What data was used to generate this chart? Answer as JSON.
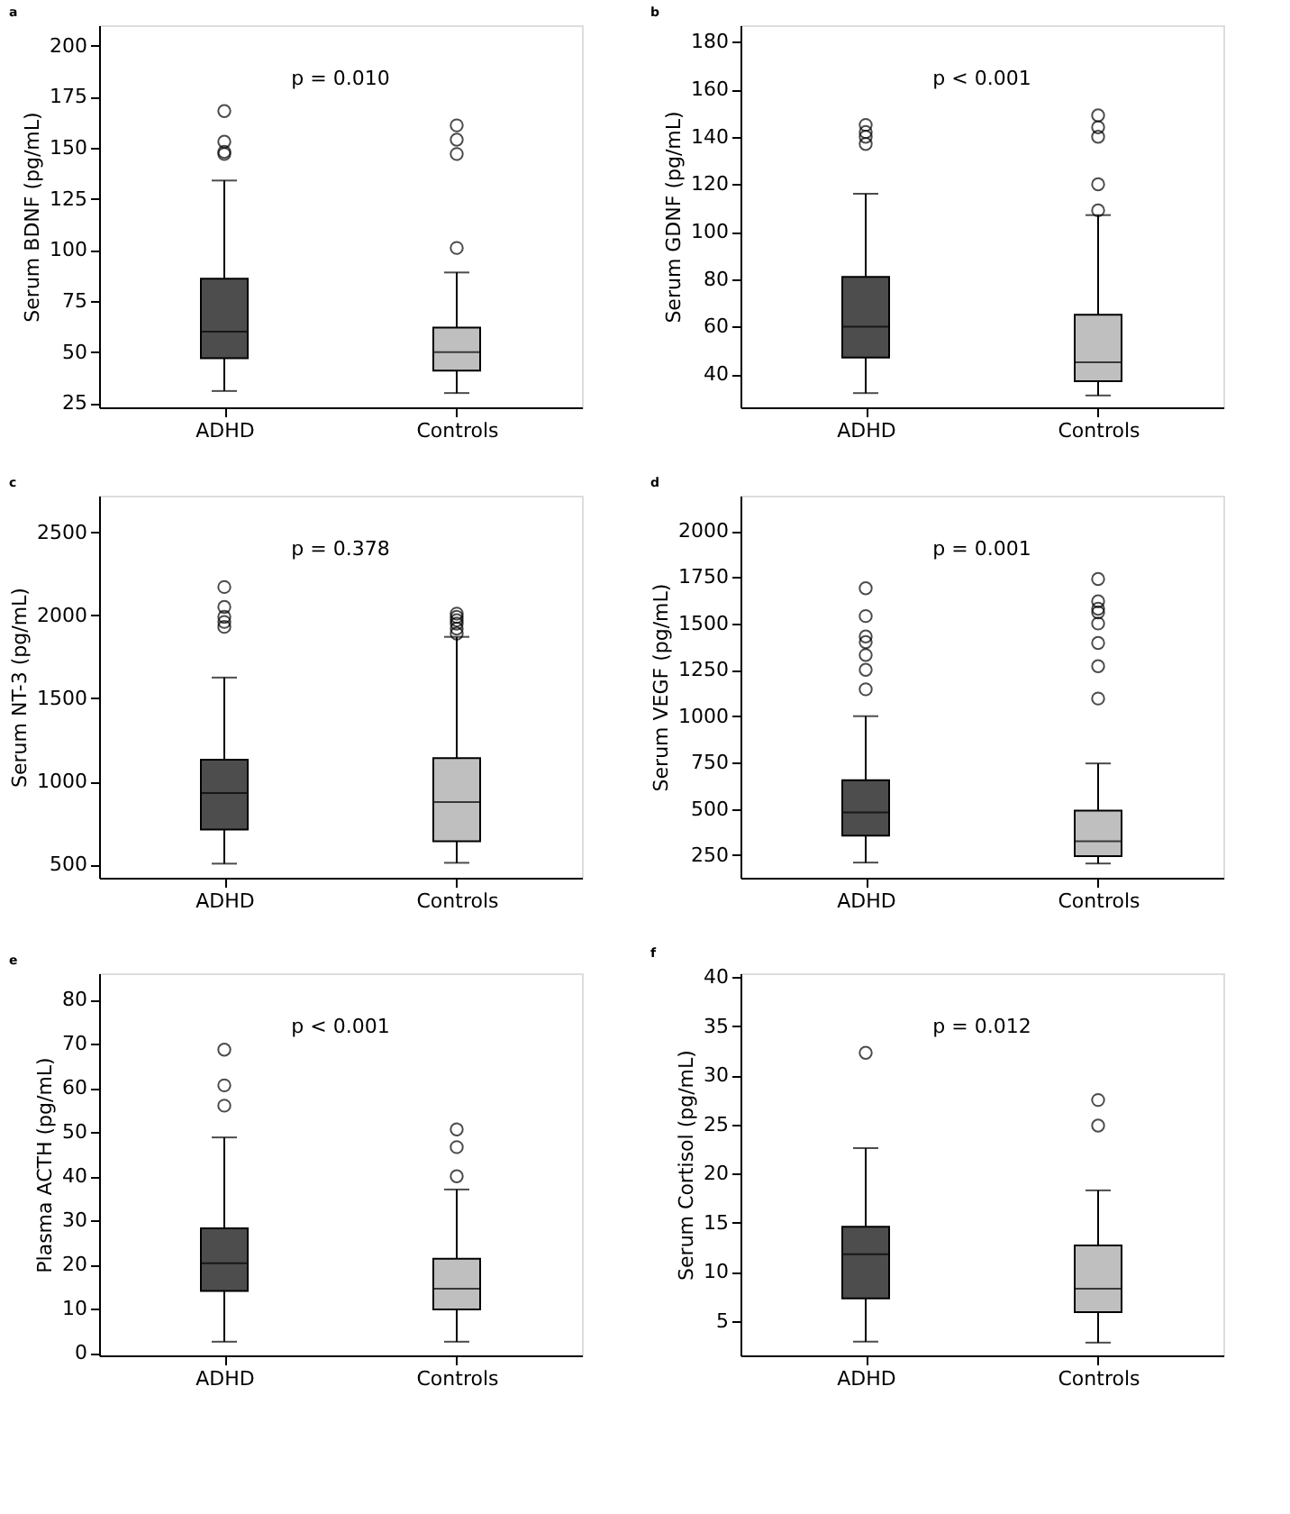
{
  "chart_data": [
    {
      "type": "box",
      "title": "a",
      "categories": [
        "ADHD",
        "Controls"
      ],
      "colors": [
        "#4d4d4d",
        "#bfbfbf"
      ],
      "ylabel": "Serum BDNF (pg/mL)",
      "annotations": [
        "p = 0.010"
      ],
      "ylim": [
        23,
        210
      ],
      "yticks": [
        25,
        50,
        75,
        100,
        125,
        150,
        175,
        200
      ],
      "boxes": [
        {
          "low": 31,
          "q1": 47,
          "median": 60,
          "q3": 86,
          "high": 134,
          "outliers": [
            147,
            148,
            153,
            168
          ]
        },
        {
          "low": 30,
          "q1": 41,
          "median": 50,
          "q3": 62,
          "high": 89,
          "outliers": [
            101,
            147,
            154,
            161
          ]
        }
      ]
    },
    {
      "type": "box",
      "title": "b",
      "categories": [
        "ADHD",
        "Controls"
      ],
      "colors": [
        "#4d4d4d",
        "#bfbfbf"
      ],
      "ylabel": "Serum GDNF (pg/mL)",
      "annotations": [
        "p < 0.001"
      ],
      "ylim": [
        26,
        187
      ],
      "yticks": [
        40,
        60,
        80,
        100,
        120,
        140,
        160,
        180
      ],
      "boxes": [
        {
          "low": 32,
          "q1": 47,
          "median": 60,
          "q3": 81,
          "high": 116,
          "outliers": [
            137,
            140,
            142,
            145
          ]
        },
        {
          "low": 31,
          "q1": 37,
          "median": 45,
          "q3": 65,
          "high": 107,
          "outliers": [
            109,
            120,
            140,
            144,
            149
          ]
        }
      ]
    },
    {
      "type": "box",
      "title": "c",
      "categories": [
        "ADHD",
        "Controls"
      ],
      "colors": [
        "#4d4d4d",
        "#bfbfbf"
      ],
      "ylabel": "Serum NT-3 (pg/mL)",
      "annotations": [
        "p = 0.378"
      ],
      "ylim": [
        420,
        2720
      ],
      "yticks": [
        500,
        1000,
        1500,
        2000,
        2500
      ],
      "boxes": [
        {
          "low": 505,
          "q1": 710,
          "median": 930,
          "q3": 1130,
          "high": 1625,
          "outliers": [
            1930,
            1960,
            1990,
            2050,
            2170
          ]
        },
        {
          "low": 510,
          "q1": 640,
          "median": 875,
          "q3": 1140,
          "high": 1870,
          "outliers": [
            1890,
            1920,
            1950,
            1970,
            1990,
            2010
          ]
        }
      ]
    },
    {
      "type": "box",
      "title": "d",
      "categories": [
        "ADHD",
        "Controls"
      ],
      "colors": [
        "#4d4d4d",
        "#bfbfbf"
      ],
      "ylabel": "Serum VEGF (pg/mL)",
      "annotations": [
        "p = 0.001"
      ],
      "ylim": [
        128,
        2190
      ],
      "yticks": [
        250,
        500,
        750,
        1000,
        1250,
        1500,
        1750,
        2000
      ],
      "boxes": [
        {
          "low": 210,
          "q1": 355,
          "median": 480,
          "q3": 655,
          "high": 1000,
          "outliers": [
            1145,
            1250,
            1330,
            1400,
            1430,
            1540,
            1690
          ]
        },
        {
          "low": 205,
          "q1": 245,
          "median": 325,
          "q3": 490,
          "high": 745,
          "outliers": [
            1095,
            1270,
            1395,
            1500,
            1560,
            1580,
            1620,
            1740
          ]
        }
      ]
    },
    {
      "type": "box",
      "title": "e",
      "categories": [
        "ADHD",
        "Controls"
      ],
      "colors": [
        "#4d4d4d",
        "#bfbfbf"
      ],
      "ylabel": "Plasma ACTH (pg/mL)",
      "annotations": [
        "p < 0.001"
      ],
      "ylim": [
        -0.6,
        86
      ],
      "yticks": [
        0,
        10,
        20,
        30,
        40,
        50,
        60,
        70,
        80
      ],
      "boxes": [
        {
          "low": 2.5,
          "q1": 14,
          "median": 20.3,
          "q3": 28.2,
          "high": 48.8,
          "outliers": [
            56,
            60.6,
            68.7
          ]
        },
        {
          "low": 2.5,
          "q1": 9.8,
          "median": 14.5,
          "q3": 21.3,
          "high": 37,
          "outliers": [
            40,
            46.6,
            50.6
          ]
        }
      ]
    },
    {
      "type": "box",
      "title": "f",
      "categories": [
        "ADHD",
        "Controls"
      ],
      "colors": [
        "#4d4d4d",
        "#bfbfbf"
      ],
      "ylabel": "Serum Cortisol (pg/mL)",
      "annotations": [
        "p = 0.012"
      ],
      "ylim": [
        1.5,
        40.4
      ],
      "yticks": [
        5,
        10,
        15,
        20,
        25,
        30,
        35,
        40
      ],
      "boxes": [
        {
          "low": 2.9,
          "q1": 7.3,
          "median": 11.8,
          "q3": 14.6,
          "high": 22.6,
          "outliers": [
            32.3
          ]
        },
        {
          "low": 2.8,
          "q1": 5.9,
          "median": 8.3,
          "q3": 12.7,
          "high": 18.3,
          "outliers": [
            24.9,
            27.5
          ]
        }
      ]
    }
  ]
}
